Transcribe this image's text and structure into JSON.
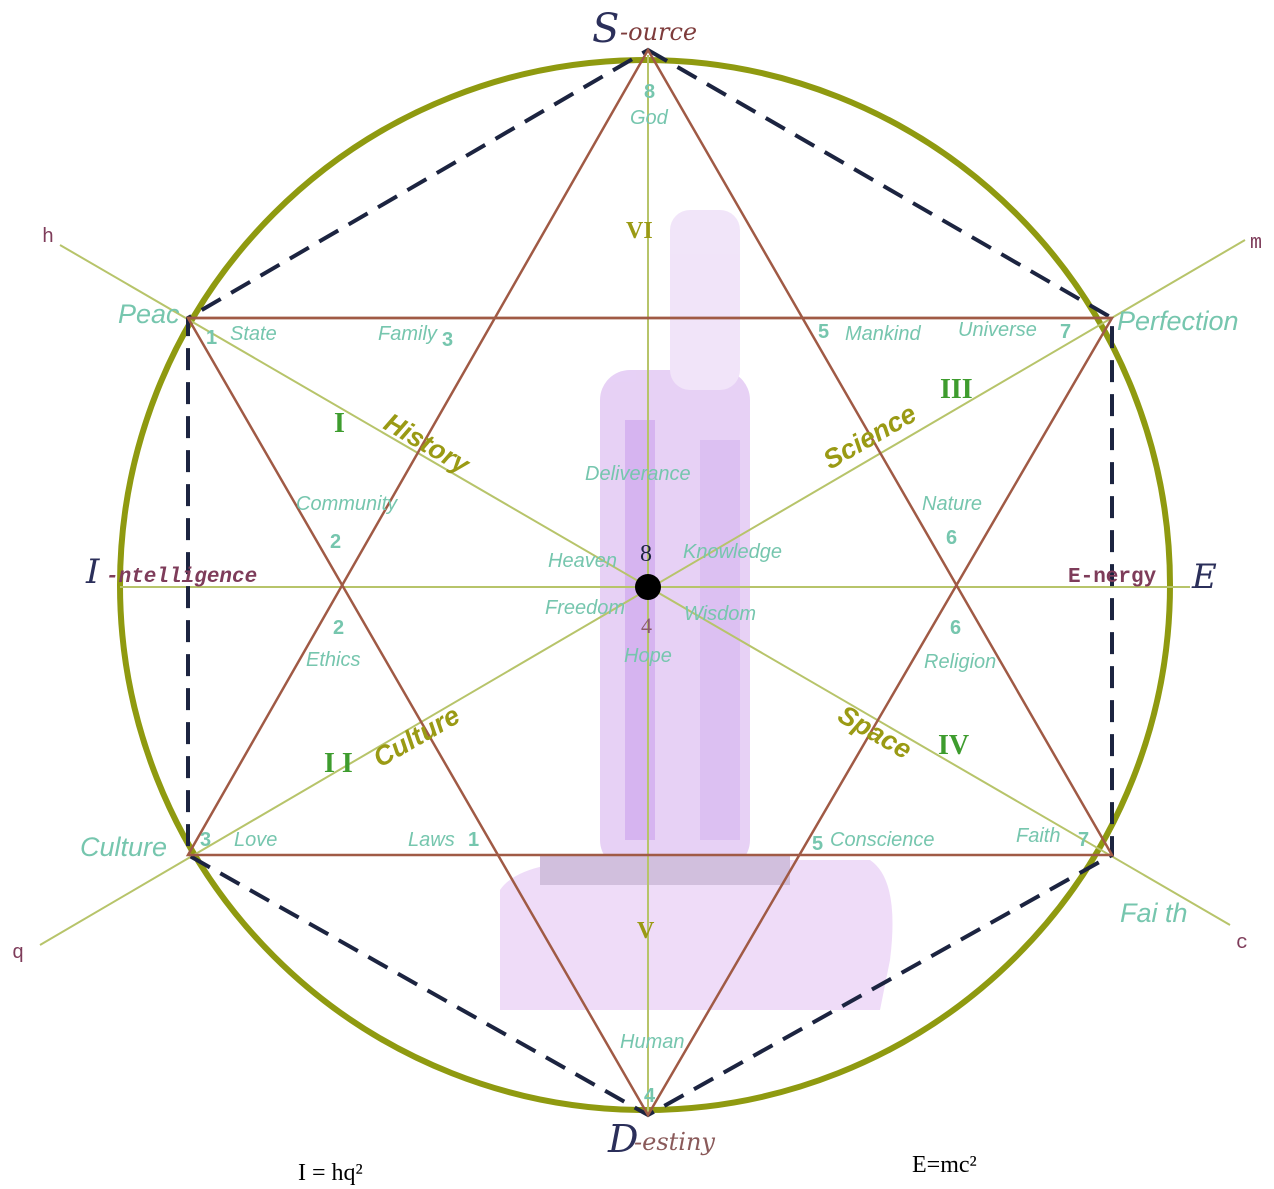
{
  "poles": {
    "source_initial": "S",
    "source_rest": "-ource",
    "destiny_initial": "D",
    "destiny_rest": "-estiny",
    "intelligence_initial": "I",
    "intelligence_rest": "-ntelligence",
    "energy_text": "E-nergy",
    "energy_initial": "E"
  },
  "axes": {
    "h": "h",
    "m": "m",
    "q": "q",
    "c": "c"
  },
  "outer_labels": {
    "peace": "Peac",
    "perfection": "Perfection",
    "culture": "Culture",
    "faith": "Fai th"
  },
  "axis_titles": {
    "history": "History",
    "science": "Science",
    "culture": "Culture",
    "space": "Space"
  },
  "numerals": {
    "i": "I",
    "ii": "I I",
    "iii": "III",
    "iv": "IV",
    "v": "V",
    "vi": "VI"
  },
  "words": {
    "god": "God",
    "state": "State",
    "family": "Family",
    "mankind": "Mankind",
    "universe": "Universe",
    "community": "Community",
    "nature": "Nature",
    "deliverance": "Deliverance",
    "heaven": "Heaven",
    "knowledge": "Knowledge",
    "freedom": "Freedom",
    "wisdom": "Wisdom",
    "hope": "Hope",
    "ethics": "Ethics",
    "religion": "Religion",
    "love": "Love",
    "laws": "Laws",
    "conscience": "Conscience",
    "faith_inner": "Faith",
    "human": "Human"
  },
  "numbers": {
    "n8_top": "8",
    "n1_tl": "1",
    "n3_tl": "3",
    "n5_tr": "5",
    "n7_tr": "7",
    "n2_upper": "2",
    "n6_upper": "6",
    "n8_center": "8",
    "n4_center": "4",
    "n2_lower": "2",
    "n6_lower": "6",
    "n3_bl": "3",
    "n1_bl": "1",
    "n5_br": "5",
    "n7_br": "7",
    "n4_bottom": "4"
  },
  "formulas": {
    "left": "I = hq²",
    "right": "E=mc²"
  },
  "colors": {
    "circle": "#8f9a10",
    "triangle": "#a05a45",
    "dashed": "#1c2440",
    "axis_line": "#b7c46a",
    "word": "#76c6ae",
    "axis_title": "#9a9a14",
    "numeral": "#3e9c2e",
    "pole_dark": "#2b2f5a",
    "pole_brown": "#7e3c3c",
    "glow": "#d9b8ef"
  }
}
